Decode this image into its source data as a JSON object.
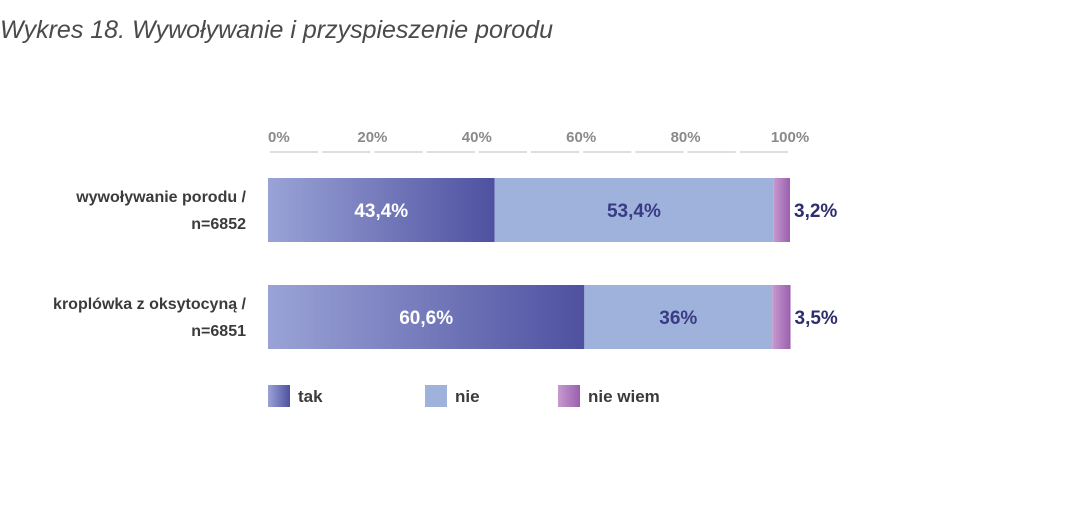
{
  "title": "Wykres 18. Wywoływanie i przyspieszenie porodu",
  "chart_data": {
    "type": "bar",
    "orientation": "horizontal",
    "stacked": true,
    "title": "Wykres 18. Wywoływanie i przyspieszenie porodu",
    "xlim": [
      0,
      100
    ],
    "x_ticks": [
      "0%",
      "20%",
      "40%",
      "60%",
      "80%",
      "100%"
    ],
    "categories": [
      [
        "wywoływanie porodu /",
        "n=6852"
      ],
      [
        "kroplówka z oksytocyną /",
        "n=6851"
      ]
    ],
    "series": [
      {
        "name": "tak",
        "values": [
          43.4,
          60.6
        ],
        "labels": [
          "43,4%",
          "60,6%"
        ],
        "color_start": "#9aa3d6",
        "color_end": "#4f51a0",
        "label_color": "#ffffff"
      },
      {
        "name": "nie",
        "values": [
          53.4,
          36
        ],
        "labels": [
          "53,4%",
          "36%"
        ],
        "color": "#9eb2dc",
        "label_color": "#3a3a85"
      },
      {
        "name": "nie wiem",
        "values": [
          3.2,
          3.5
        ],
        "labels": [
          "3,2%",
          "3,5%"
        ],
        "color_start": "#c79acf",
        "color_end": "#9a5fae",
        "label_color": "#2e2e6e"
      }
    ],
    "legend_position": "bottom-left",
    "grid": false
  }
}
